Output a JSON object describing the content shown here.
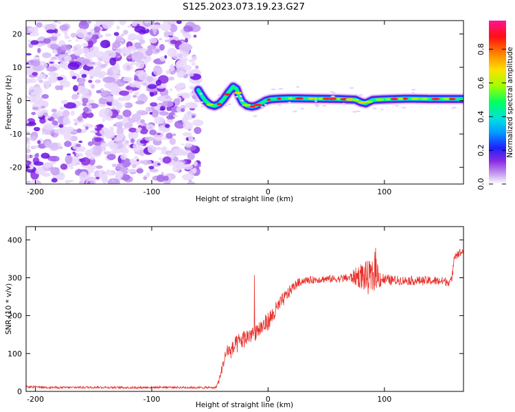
{
  "title": "S125.2023.073.19.23.G27",
  "chart_data": [
    {
      "type": "heatmap",
      "title": "",
      "xlabel": "Height of straight line (km)",
      "ylabel": "Frequency (Hz)",
      "xlim": [
        -208,
        168
      ],
      "ylim": [
        -25,
        24
      ],
      "xticks": [
        -200,
        -100,
        0,
        100
      ],
      "yticks": [
        -20,
        -10,
        0,
        10,
        20
      ],
      "xtick_labels": [
        "-200",
        "-100",
        "0",
        "100"
      ],
      "ytick_labels": [
        "-20",
        "-10",
        "0",
        "10",
        "20"
      ],
      "noise_region_x": [
        -208,
        -60
      ],
      "ridge_frequency": {
        "x": [
          -60,
          -57,
          -54,
          -50,
          -46,
          -42,
          -38,
          -34,
          -30,
          -27,
          -25,
          -22,
          -18,
          -14,
          -10,
          -6,
          -2,
          2,
          10,
          20,
          40,
          60,
          75,
          80,
          84,
          90,
          100,
          120,
          140,
          168
        ],
        "y": [
          3.2,
          1.5,
          0,
          -1.2,
          -1.6,
          -1.0,
          0.5,
          2.5,
          4.2,
          3.5,
          1.5,
          -0.5,
          -1.5,
          -1.8,
          -1.5,
          -0.8,
          0,
          0.4,
          0.6,
          0.7,
          0.6,
          0.5,
          0.3,
          -0.5,
          -0.8,
          0.2,
          0.4,
          0.6,
          0.5,
          0.5
        ]
      },
      "colorbar": {
        "label": "Normalized spectral amplitude",
        "range": [
          0,
          0.97
        ],
        "ticks": [
          0.0,
          0.2,
          0.4,
          0.6,
          0.8
        ],
        "tick_labels": [
          "0.0",
          "0.2",
          "0.4",
          "0.6",
          "0.8"
        ],
        "colors": [
          "#ffffff",
          "#8a2be2",
          "#0000ff",
          "#00c8ff",
          "#00ff80",
          "#c8ff00",
          "#ffc800",
          "#ff0000",
          "#ff1493"
        ]
      }
    },
    {
      "type": "line",
      "title": "",
      "xlabel": "Height of straight line (km)",
      "ylabel": "SNR (10 * v/v)",
      "xlim": [
        -208,
        168
      ],
      "ylim": [
        0,
        435
      ],
      "xticks": [
        -200,
        -100,
        0,
        100
      ],
      "yticks": [
        0,
        100,
        200,
        300,
        400
      ],
      "xtick_labels": [
        "-200",
        "-100",
        "0",
        "100"
      ],
      "ytick_labels": [
        "0",
        "100",
        "200",
        "300",
        "400"
      ],
      "color": "#e8302a",
      "series": [
        {
          "x": [
            -208,
            -180,
            -150,
            -120,
            -90,
            -60,
            -45,
            -42,
            -38,
            -35,
            -32,
            -28,
            -25,
            -20,
            -15,
            -10,
            -5,
            0,
            5,
            10,
            15,
            20,
            25,
            30,
            40,
            50,
            60,
            70,
            80,
            85,
            90,
            92,
            95,
            100,
            110,
            120,
            130,
            140,
            155,
            158,
            160,
            165,
            168
          ],
          "y": [
            12,
            10,
            11,
            10,
            11,
            10,
            10,
            30,
            80,
            110,
            105,
            120,
            130,
            140,
            150,
            160,
            170,
            185,
            205,
            230,
            250,
            270,
            285,
            292,
            295,
            297,
            297,
            300,
            305,
            300,
            300,
            330,
            300,
            295,
            293,
            293,
            292,
            292,
            290,
            292,
            360,
            365,
            370
          ],
          "noise": [
            3,
            3,
            3,
            3,
            3,
            3,
            3,
            8,
            15,
            20,
            20,
            25,
            25,
            25,
            25,
            25,
            25,
            25,
            25,
            20,
            18,
            15,
            12,
            10,
            10,
            10,
            10,
            12,
            35,
            45,
            45,
            60,
            30,
            15,
            12,
            12,
            12,
            12,
            12,
            12,
            12,
            12,
            12
          ]
        }
      ]
    }
  ]
}
